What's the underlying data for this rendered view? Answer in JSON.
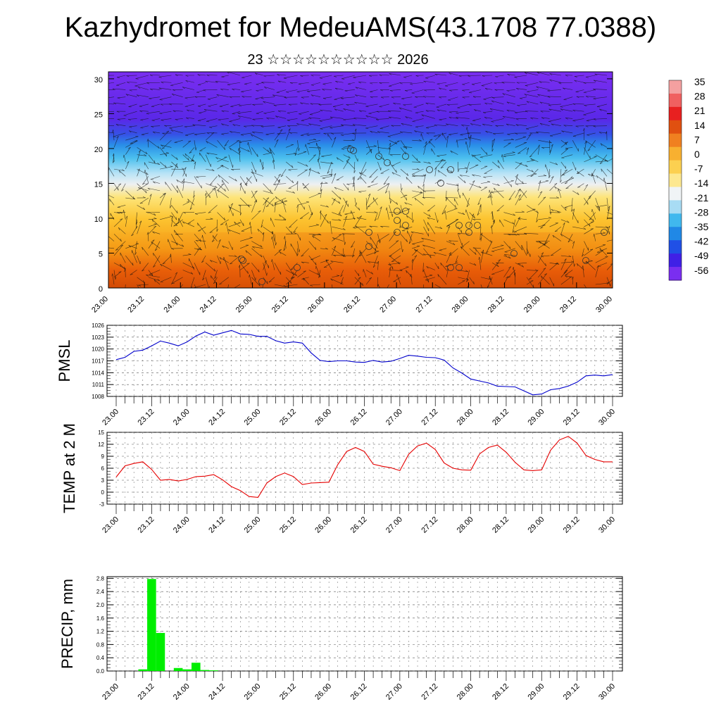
{
  "header": {
    "title": "Kazhydromet for MedeuAMS(43.1708 77.0388)",
    "subtitle": "23 ☆☆☆☆☆☆☆☆☆☆ 2026"
  },
  "chart_data": [
    {
      "type": "heatmap",
      "x_tick_labels": [
        "23.00",
        "23.12",
        "24.00",
        "24.12",
        "25.00",
        "25.12",
        "26.00",
        "26.12",
        "27.00",
        "27.12",
        "28.00",
        "28.12",
        "29.00",
        "29.12",
        "30.00"
      ],
      "y_ticks": [
        0,
        5,
        10,
        15,
        20,
        25,
        30
      ],
      "ylim": [
        0,
        31
      ],
      "colorbar_labels": [
        "35",
        "28",
        "21",
        "14",
        "7",
        "0",
        "-7",
        "-14",
        "-21",
        "-28",
        "-35",
        "-42",
        "-49",
        "-56"
      ],
      "colorbar_values": [
        35,
        28,
        21,
        14,
        7,
        0,
        -7,
        -14,
        -21,
        -28,
        -35,
        -42,
        -49,
        -56
      ]
    },
    {
      "type": "line",
      "ylabel": "PMSL",
      "x_tick_labels": [
        "23.00",
        "23.12",
        "24.00",
        "24.12",
        "25.00",
        "25.12",
        "26.00",
        "26.12",
        "27.00",
        "27.12",
        "28.00",
        "28.12",
        "29.00",
        "29.12",
        "30.00"
      ],
      "y_ticks": [
        1008,
        1011,
        1014,
        1017,
        1020,
        1023,
        1026
      ],
      "ylim": [
        1008,
        1026
      ],
      "color": "#0000cc",
      "x": [
        0,
        3,
        6,
        9,
        12,
        15,
        18,
        21,
        24,
        27,
        30,
        33,
        36,
        39,
        42,
        45,
        48,
        51,
        54,
        57,
        60,
        63,
        66,
        69,
        72,
        75,
        78,
        81,
        84,
        87,
        90,
        93,
        96,
        99,
        102,
        105,
        108,
        111,
        114,
        117,
        120,
        123,
        126,
        129,
        132,
        135,
        138,
        141,
        144,
        147,
        150,
        153,
        156,
        159,
        162,
        165,
        168
      ],
      "values": [
        1017.3,
        1017.9,
        1019.4,
        1019.7,
        1020.8,
        1022.0,
        1021.5,
        1020.8,
        1021.8,
        1023.3,
        1024.3,
        1023.5,
        1024.1,
        1024.7,
        1023.8,
        1023.7,
        1023.2,
        1023.2,
        1022.1,
        1021.5,
        1021.8,
        1021.5,
        1019.0,
        1017.1,
        1016.8,
        1017.0,
        1017.0,
        1016.7,
        1016.6,
        1017.1,
        1016.7,
        1016.9,
        1017.6,
        1018.4,
        1018.2,
        1017.9,
        1017.8,
        1017.2,
        1015.2,
        1013.9,
        1012.4,
        1011.9,
        1011.4,
        1010.6,
        1010.5,
        1010.4,
        1009.4,
        1008.4,
        1008.6,
        1009.7,
        1010.0,
        1010.6,
        1011.6,
        1013.2,
        1013.4,
        1013.2,
        1013.5
      ]
    },
    {
      "type": "line",
      "ylabel": "TEMP at 2 M",
      "x_tick_labels": [
        "23.00",
        "23.12",
        "24.00",
        "24.12",
        "25.00",
        "25.12",
        "26.00",
        "26.12",
        "27.00",
        "27.12",
        "28.00",
        "28.12",
        "29.00",
        "29.12",
        "30.00"
      ],
      "y_ticks": [
        -3,
        0,
        3,
        6,
        9,
        12,
        15
      ],
      "ylim": [
        -3,
        15
      ],
      "color": "#e60000",
      "x": [
        0,
        3,
        6,
        9,
        12,
        15,
        18,
        21,
        24,
        27,
        30,
        33,
        36,
        39,
        42,
        45,
        48,
        51,
        54,
        57,
        60,
        63,
        66,
        69,
        72,
        75,
        78,
        81,
        84,
        87,
        90,
        93,
        96,
        99,
        102,
        105,
        108,
        111,
        114,
        117,
        120,
        123,
        126,
        129,
        132,
        135,
        138,
        141,
        144,
        147,
        150,
        153,
        156,
        159,
        162,
        165,
        168
      ],
      "values": [
        3.8,
        6.6,
        7.2,
        7.6,
        5.7,
        3.0,
        3.2,
        2.8,
        3.2,
        3.9,
        4.0,
        4.4,
        3.1,
        1.4,
        0.4,
        -1.1,
        -1.3,
        2.3,
        3.9,
        4.8,
        3.9,
        1.9,
        2.3,
        2.4,
        2.5,
        6.9,
        10.2,
        11.2,
        10.2,
        7.0,
        6.5,
        6.1,
        5.4,
        9.5,
        11.6,
        12.3,
        10.7,
        7.3,
        6.0,
        5.6,
        5.5,
        9.6,
        11.2,
        11.8,
        10.0,
        7.5,
        5.6,
        5.4,
        5.6,
        10.5,
        13.1,
        14.0,
        12.3,
        9.2,
        8.2,
        7.6,
        7.6
      ]
    },
    {
      "type": "bar",
      "ylabel": "PRECIP, mm",
      "x_tick_labels": [
        "23.00",
        "23.12",
        "24.00",
        "24.12",
        "25.00",
        "25.12",
        "26.00",
        "26.12",
        "27.00",
        "27.12",
        "28.00",
        "28.12",
        "29.00",
        "29.12",
        "30.00"
      ],
      "y_ticks": [
        0.0,
        0.4,
        0.8,
        1.2,
        1.6,
        2.0,
        2.4,
        2.8
      ],
      "y_tick_labels": [
        "0.0",
        "0.4",
        "0.8",
        "1.2",
        "1.6",
        "2.0",
        "2.4",
        "2.8"
      ],
      "ylim": [
        0,
        2.85
      ],
      "color": "#00ee00",
      "x": [
        9,
        12,
        15,
        21,
        24,
        27,
        30,
        33
      ],
      "values": [
        0.05,
        2.78,
        1.15,
        0.09,
        0.05,
        0.25,
        0.03,
        0.02
      ]
    }
  ]
}
